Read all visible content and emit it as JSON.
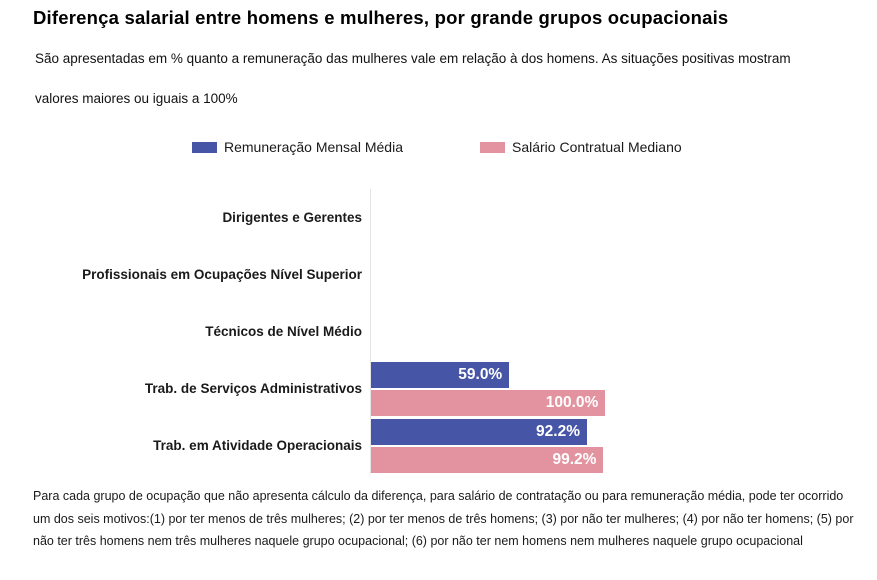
{
  "title": "Diferença salarial entre homens e mulheres, por grande grupos ocupacionais",
  "subtitle": "São apresentadas em % quanto a remuneração das mulheres vale em relação à dos homens. As situações positivas mostram valores maiores ou iguais a 100%",
  "legend": [
    {
      "label": "Remuneração Mensal Média",
      "color": "#4655A6"
    },
    {
      "label": "Salário Contratual Mediano",
      "color": "#E2939F"
    }
  ],
  "footnote": "Para cada grupo de ocupação que não apresenta cálculo da diferença, para salário de contratação ou para remuneração média, pode ter ocorrido um dos seis motivos:(1) por ter menos de três mulheres; (2) por ter menos de três homens; (3) por não ter mulheres; (4) por não ter homens; (5) por não ter três homens nem três mulheres naquele grupo ocupacional; (6) por não ter nem homens nem mulheres naquele grupo ocupacional",
  "chart_data": {
    "type": "bar",
    "orientation": "horizontal",
    "title": "Diferença salarial entre homens e mulheres, por grande grupos ocupacionais",
    "categories": [
      "Dirigentes e Gerentes",
      "Profissionais em Ocupações Nível Superior",
      "Técnicos de Nível Médio",
      "Trab. de Serviços Administrativos",
      "Trab. em Atividade Operacionais"
    ],
    "series": [
      {
        "name": "Remuneração Mensal Média",
        "key": "remuneracao-mensal-media",
        "color": "#4655A6",
        "values": [
          null,
          null,
          null,
          59.0,
          92.2
        ],
        "labels": [
          null,
          null,
          null,
          "59.0%",
          "92.2%"
        ]
      },
      {
        "name": "Salário Contratual Mediano",
        "key": "salario-contratual-mediano",
        "color": "#E2939F",
        "values": [
          null,
          null,
          null,
          100.0,
          99.2
        ],
        "labels": [
          null,
          null,
          null,
          "100.0%",
          "99.2%"
        ]
      }
    ],
    "value_unit": "%",
    "xlim": [
      0,
      210
    ],
    "grid": false,
    "legend_position": "top"
  }
}
